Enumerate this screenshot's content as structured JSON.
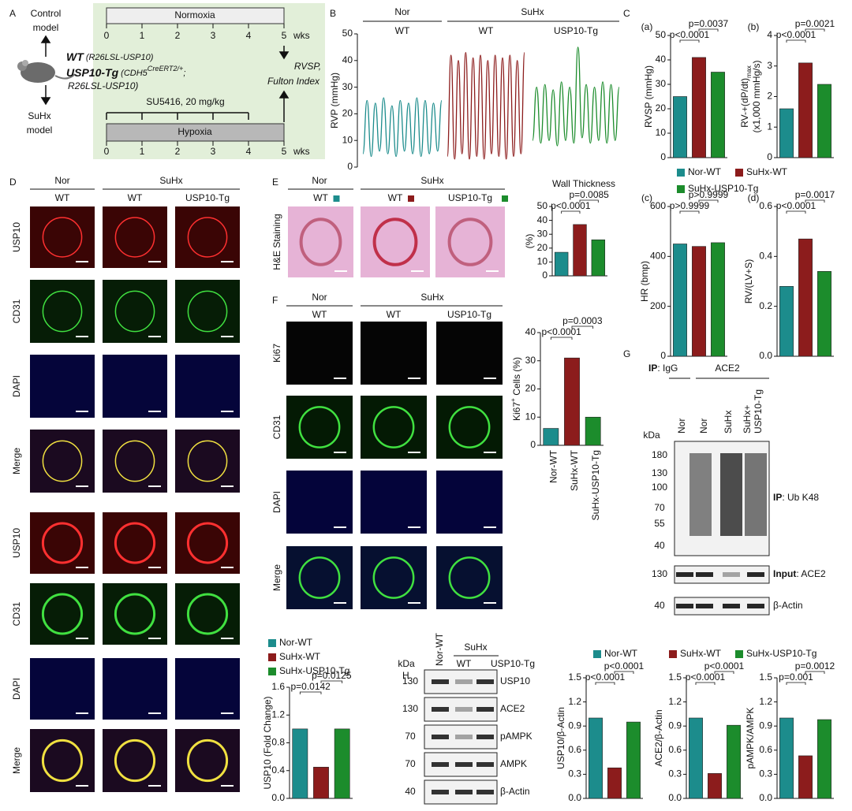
{
  "panel_letters": [
    "A",
    "B",
    "C",
    "D",
    "E",
    "F",
    "G",
    "H"
  ],
  "panel_a": {
    "control_model": [
      "Control",
      "model"
    ],
    "suhx_model": [
      "SuHx",
      "model"
    ],
    "normoxia": "Normoxia",
    "hypoxia": "Hypoxia",
    "wks": "wks",
    "timeline_ticks": [
      0,
      1,
      2,
      3,
      4,
      5
    ],
    "wt": "WT",
    "wt_detail": " (R26LSL-USP10)",
    "tg": "USP10-Tg",
    "tg_detail": [
      " (CDH5",
      "CreERT2/+",
      ";"
    ],
    "tg_detail2": "R26LSL-USP10)",
    "readout": [
      "RVSP,",
      "Fulton Index"
    ],
    "treatment": "SU5416, 20 mg/kg"
  },
  "panel_b": {
    "groups": [
      "Nor",
      "SuHx"
    ]
  },
  "panel_c": {
    "legend": [
      "Nor-WT",
      "SuHx-WT",
      "SuHx-USP10-Tg"
    ]
  },
  "panel_d": {
    "groups": [
      "Nor",
      "SuHx"
    ],
    "columns": [
      "WT",
      "WT",
      "USP10-Tg"
    ],
    "rows": [
      "USP10",
      "CD31",
      "DAPI",
      "Merge",
      "USP10",
      "CD31",
      "DAPI",
      "Merge"
    ],
    "legend": [
      "Nor-WT",
      "SuHx-WT",
      "SuHx-USP10-Tg"
    ]
  },
  "panel_e": {
    "groups": [
      "Nor",
      "SuHx"
    ],
    "columns": [
      "WT",
      "WT",
      "USP10-Tg"
    ],
    "stain": "H&E Staining"
  },
  "panel_f": {
    "groups": [
      "Nor",
      "SuHx"
    ],
    "columns": [
      "WT",
      "WT",
      "USP10-Tg"
    ],
    "rows": [
      "Ki67",
      "CD31",
      "DAPI",
      "Merge"
    ]
  },
  "panel_g": {
    "ip_igg": [
      "IP",
      ": IgG"
    ],
    "ip_ace2": "ACE2",
    "lanes": [
      "Nor",
      "Nor",
      "SuHx",
      "SuHx+",
      "USP10-Tg"
    ],
    "kda": "kDa",
    "markers": [
      180,
      130,
      100,
      70,
      55,
      40
    ],
    "blot_label": [
      "IP",
      ": Ub K48"
    ],
    "input_markers": [
      130,
      40
    ],
    "input_label": [
      "Input",
      ": ACE2"
    ],
    "actin": "β-Actin"
  },
  "panel_h": {
    "nor": "Nor-WT",
    "suhx": "SuHx",
    "columns": [
      "WT",
      "USP10-Tg"
    ],
    "kda": "kDa",
    "rows": [
      {
        "kda": 130,
        "label": "USP10"
      },
      {
        "kda": 130,
        "label": "ACE2"
      },
      {
        "kda": 70,
        "label": "pAMPK"
      },
      {
        "kda": 70,
        "label": "AMPK"
      },
      {
        "kda": 40,
        "label": "β-Actin"
      }
    ],
    "legend": [
      "Nor-WT",
      "SuHx-WT",
      "SuHx-USP10-Tg"
    ]
  },
  "chart_data": [
    {
      "type": "line",
      "ylabel": "RVP (mmHg)",
      "ylim": [
        0,
        50
      ],
      "yticks": [
        0,
        10,
        20,
        30,
        40,
        50
      ],
      "series": [
        {
          "name": "WT",
          "color": "#1c8c8c",
          "values": [
            5,
            25,
            4,
            24,
            6,
            26,
            5,
            23,
            4,
            25,
            6,
            24,
            5,
            26,
            4,
            25,
            5,
            24,
            6,
            25
          ]
        },
        {
          "name": "WT",
          "color": "#8c1c1c",
          "values": [
            4,
            42,
            3,
            40,
            5,
            43,
            3,
            41,
            4,
            42,
            3,
            40,
            5,
            42,
            4,
            41,
            3,
            42,
            4,
            40,
            5,
            43
          ]
        },
        {
          "name": "USP10-Tg",
          "color": "#1c8c2c",
          "values": [
            10,
            30,
            9,
            31,
            10,
            29,
            8,
            32,
            10,
            30,
            9,
            45,
            11,
            31,
            9,
            30,
            10,
            32,
            9,
            31,
            10,
            30
          ]
        }
      ]
    },
    {
      "type": "bar",
      "panel_label": "(a)",
      "ylabel": "RVSP (mmHg)",
      "ylim": [
        0,
        50
      ],
      "yticks": [
        0,
        10,
        20,
        30,
        40,
        50
      ],
      "values": [
        25,
        41,
        35
      ],
      "colors": [
        "#1c8c8c",
        "#8c1c1c",
        "#1c8c2c"
      ],
      "annotations": [
        "p<0.0001",
        "p=0.0037"
      ]
    },
    {
      "type": "bar",
      "panel_label": "(b)",
      "ylabel": [
        "RV-+(dP/dt)",
        "max"
      ],
      "ylabel2": "(x1,000 mmHg/s)",
      "ylim": [
        0,
        4
      ],
      "yticks": [
        0,
        1,
        2,
        3,
        4
      ],
      "values": [
        1.6,
        3.1,
        2.4
      ],
      "colors": [
        "#1c8c8c",
        "#8c1c1c",
        "#1c8c2c"
      ],
      "annotations": [
        "p<0.0001",
        "p=0.0021"
      ]
    },
    {
      "type": "bar",
      "panel_label": "(c)",
      "ylabel": "HR (bmp)",
      "ylim": [
        0,
        600
      ],
      "yticks": [
        0,
        200,
        400,
        600
      ],
      "values": [
        450,
        440,
        455
      ],
      "colors": [
        "#1c8c8c",
        "#8c1c1c",
        "#1c8c2c"
      ],
      "annotations": [
        "p>0.9999",
        "p>0.9999"
      ]
    },
    {
      "type": "bar",
      "panel_label": "(d)",
      "ylabel": "RV/(LV+S)",
      "ylim": [
        0,
        0.6
      ],
      "yticks": [
        {
          "value": 0,
          "label": "0.0"
        },
        0.2,
        0.4,
        0.6
      ],
      "values": [
        0.28,
        0.47,
        0.34
      ],
      "colors": [
        "#1c8c8c",
        "#8c1c1c",
        "#1c8c2c"
      ],
      "annotations": [
        "p<0.0001",
        "p=0.0017"
      ]
    },
    {
      "type": "bar",
      "title": "Wall Thickness",
      "ylabel": "(%)",
      "ylim": [
        0,
        50
      ],
      "yticks": [
        0,
        10,
        20,
        30,
        40,
        50
      ],
      "values": [
        17,
        37,
        26
      ],
      "colors": [
        "#1c8c8c",
        "#8c1c1c",
        "#1c8c2c"
      ],
      "annotations": [
        "p<0.0001",
        "p=0.0085"
      ]
    },
    {
      "type": "bar",
      "ylabel": [
        "Ki67",
        "+",
        " Cells (%)"
      ],
      "ylim": [
        0,
        40
      ],
      "yticks": [
        0,
        10,
        20,
        30,
        40
      ],
      "categories": [
        "Nor-WT",
        "SuHx-WT",
        "SuHx-USP10-Tg"
      ],
      "values": [
        6,
        31,
        10
      ],
      "colors": [
        "#1c8c8c",
        "#8c1c1c",
        "#1c8c2c"
      ],
      "annotations": [
        "p<0.0001",
        "p=0.0003"
      ]
    },
    {
      "type": "bar",
      "ylabel": "USP10 (Fold Change)",
      "ylim": [
        0,
        1.6
      ],
      "yticks": [
        {
          "value": 0,
          "label": "0.0"
        },
        0.4,
        0.8,
        1.2,
        1.6
      ],
      "values": [
        1.0,
        0.45,
        1.0
      ],
      "colors": [
        "#1c8c8c",
        "#8c1c1c",
        "#1c8c2c"
      ],
      "annotations": [
        "p=0.0142",
        "p=0.0125"
      ]
    },
    {
      "type": "bar",
      "ylabel": "USP10/β-Actin",
      "ylim": [
        0,
        1.5
      ],
      "yticks": [
        {
          "value": 0,
          "label": "0.0"
        },
        0.3,
        0.6,
        0.9,
        1.2,
        1.5
      ],
      "values": [
        1.0,
        0.38,
        0.95
      ],
      "colors": [
        "#1c8c8c",
        "#8c1c1c",
        "#1c8c2c"
      ],
      "annotations": [
        "p<0.0001",
        "p<0.0001"
      ]
    },
    {
      "type": "bar",
      "ylabel": "ACE2/β-Actin",
      "ylim": [
        0,
        1.5
      ],
      "yticks": [
        {
          "value": 0,
          "label": "0.0"
        },
        0.3,
        0.6,
        0.9,
        1.2,
        1.5
      ],
      "values": [
        1.0,
        0.31,
        0.91
      ],
      "colors": [
        "#1c8c8c",
        "#8c1c1c",
        "#1c8c2c"
      ],
      "annotations": [
        "p<0.0001",
        "p<0.0001"
      ]
    },
    {
      "type": "bar",
      "ylabel": "pAMPK/AMPK",
      "ylim": [
        0,
        1.5
      ],
      "yticks": [
        {
          "value": 0,
          "label": "0.0"
        },
        0.3,
        0.6,
        0.9,
        1.2,
        1.5
      ],
      "values": [
        1.0,
        0.53,
        0.98
      ],
      "colors": [
        "#1c8c8c",
        "#8c1c1c",
        "#1c8c2c"
      ],
      "annotations": [
        "p=0.001",
        "p=0.0012"
      ]
    }
  ]
}
